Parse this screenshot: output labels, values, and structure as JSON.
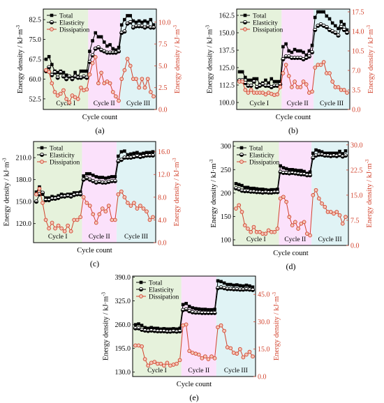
{
  "chart_data": [
    {
      "type": "line",
      "panel_label": "(a)",
      "xlabel": "Cycle count",
      "ylabel_left": "Energy density / kJ·m-3",
      "ylabel_right": "Energy density / kJ·m-3",
      "yticks_left": [
        "52.5",
        "60.0",
        "67.5",
        "75.0",
        "82.5"
      ],
      "ylim_left": [
        48.5,
        86.5
      ],
      "yticks_right": [
        "0.0",
        "2.5",
        "5.0",
        "7.5",
        "10.0"
      ],
      "ylim_right": [
        0,
        11.5
      ],
      "regions": [
        "Cycle I",
        "Cycle II",
        "Cycle III"
      ],
      "region_colors": [
        "#e6f2dc",
        "#fbe1fb",
        "#e0f3f5"
      ],
      "legend": [
        "Total",
        "Elasticity",
        "Dissipation"
      ],
      "series": [
        {
          "name": "Total",
          "axis": "left",
          "color": "#000000",
          "marker": "square",
          "values": [
            67.5,
            68.5,
            65.5,
            63.0,
            62.5,
            63.0,
            62.5,
            61.5,
            61.0,
            60.5,
            62.5,
            61.0,
            63.0,
            63.0,
            63.0,
            70.5,
            74.5,
            77.5,
            76.0,
            76.0,
            74.0,
            72.5,
            73.0,
            71.5,
            71.0,
            72.0,
            80.5,
            82.5,
            84.0,
            84.0,
            82.0,
            81.5,
            82.0,
            81.5,
            82.0,
            81.5,
            82.5,
            80.5
          ]
        },
        {
          "name": "Elasticity",
          "axis": "left",
          "color": "#000000",
          "marker": "halfcircle",
          "values": [
            63.0,
            64.5,
            61.5,
            62.5,
            60.5,
            62.5,
            61.0,
            60.0,
            61.0,
            60.0,
            61.0,
            60.5,
            60.5,
            61.0,
            60.5,
            66.5,
            69.0,
            71.5,
            72.0,
            71.0,
            70.5,
            70.0,
            70.0,
            70.0,
            70.0,
            70.5,
            77.5,
            78.0,
            81.0,
            81.5,
            79.5,
            80.0,
            80.0,
            80.0,
            79.5,
            80.0,
            79.5,
            79.5
          ]
        },
        {
          "name": "Dissipation",
          "axis": "right",
          "color": "#d2432d",
          "marker": "circle",
          "values": [
            4.5,
            4.3,
            3.0,
            2.0,
            1.6,
            1.8,
            2.2,
            1.2,
            0.8,
            1.6,
            1.4,
            1.2,
            2.5,
            2.2,
            2.3,
            4.0,
            5.3,
            6.0,
            3.0,
            4.2,
            3.0,
            3.2,
            3.0,
            2.0,
            1.5,
            1.0,
            3.5,
            4.5,
            5.8,
            5.0,
            3.5,
            3.5,
            2.5,
            3.5,
            2.5,
            3.5,
            2.0,
            1.5
          ]
        }
      ]
    },
    {
      "type": "line",
      "panel_label": "(b)",
      "xlabel": "Cycle count",
      "ylabel_left": "Energy density / kJ·m-3",
      "ylabel_right": "Energy density / kJ·m-3",
      "yticks_left": [
        "100.0",
        "112.5",
        "125.0",
        "137.5",
        "150.0",
        "162.5"
      ],
      "ylim_left": [
        95,
        167
      ],
      "yticks_right": [
        "0.0",
        "3.5",
        "7.0",
        "10.5",
        "14.0",
        "17.5"
      ],
      "ylim_right": [
        0,
        18
      ],
      "regions": [
        "Cycle I",
        "Cycle II",
        "Cycle III"
      ],
      "region_colors": [
        "#e6f2dc",
        "#fbe1fb",
        "#e0f3f5"
      ],
      "legend": [
        "Total",
        "Elasticity",
        "Dissipation"
      ],
      "series": [
        {
          "name": "Total",
          "axis": "left",
          "color": "#000000",
          "marker": "square",
          "values": [
            122,
            122,
            118,
            116,
            116,
            117,
            117,
            113,
            114,
            116,
            114,
            117,
            115,
            115,
            115,
            140,
            142,
            137,
            136,
            138,
            137,
            137,
            136,
            134,
            137,
            141,
            161,
            165,
            165,
            165,
            162,
            160,
            157,
            155,
            153,
            158,
            156,
            152
          ]
        },
        {
          "name": "Elasticity",
          "axis": "left",
          "color": "#000000",
          "marker": "halfcircle",
          "values": [
            116,
            116,
            114,
            112,
            112,
            115,
            111,
            112,
            113,
            112,
            112,
            111,
            112,
            112,
            113,
            131,
            133,
            133,
            132,
            132,
            132,
            132,
            131,
            132,
            133,
            136,
            152,
            155,
            156,
            155,
            154,
            152,
            151,
            150,
            148,
            154,
            152,
            150
          ]
        },
        {
          "name": "Dissipation",
          "axis": "right",
          "color": "#d2432d",
          "marker": "circle",
          "values": [
            5.0,
            5.0,
            3.5,
            3.0,
            3.5,
            3.0,
            3.0,
            3.0,
            3.0,
            2.7,
            3.0,
            2.8,
            2.6,
            2.7,
            4.0,
            6.5,
            8.0,
            6.0,
            4.0,
            5.0,
            4.0,
            4.0,
            5.0,
            4.5,
            3.0,
            3.2,
            7.5,
            8.0,
            8.0,
            8.5,
            6.5,
            6.5,
            5.0,
            4.0,
            4.0,
            3.5,
            3.5,
            3.0
          ]
        }
      ]
    },
    {
      "type": "line",
      "panel_label": "(c)",
      "xlabel": "Cycle count",
      "ylabel_left": "Energy density / kJ·m-3",
      "ylabel_right": "Energy density / kJ·m-3",
      "yticks_left": [
        "120.0",
        "150.0",
        "180.0",
        "210.0"
      ],
      "ylim_left": [
        94,
        232
      ],
      "yticks_right": [
        "0.0",
        "4.0",
        "8.0",
        "12.0",
        "16.0"
      ],
      "ylim_right": [
        0,
        17.8
      ],
      "regions": [
        "Cycle I",
        "Cycle II",
        "Cycle III"
      ],
      "region_colors": [
        "#e6f2dc",
        "#fbe1fb",
        "#e0f3f5"
      ],
      "legend": [
        "Total",
        "Elasticity",
        "Dissipation"
      ],
      "series": [
        {
          "name": "Total",
          "axis": "left",
          "color": "#000000",
          "marker": "square",
          "values": [
            163,
            170,
            160,
            155,
            155,
            157,
            156,
            158,
            160,
            159,
            160,
            160,
            162,
            162,
            163,
            185,
            188,
            188,
            186,
            184,
            183,
            183,
            182,
            183,
            184,
            184,
            212,
            218,
            219,
            214,
            215,
            216,
            217,
            215,
            216,
            217,
            217,
            218
          ]
        },
        {
          "name": "Elasticity",
          "axis": "left",
          "color": "#000000",
          "marker": "halfcircle",
          "values": [
            150,
            160,
            162,
            152,
            152,
            154,
            154,
            155,
            157,
            157,
            158,
            157,
            159,
            160,
            160,
            180,
            182,
            180,
            178,
            176,
            177,
            176,
            176,
            177,
            178,
            178,
            205,
            207,
            210,
            210,
            210,
            211,
            212,
            211,
            212,
            213,
            213,
            213
          ]
        },
        {
          "name": "Dissipation",
          "axis": "right",
          "color": "#d2432d",
          "marker": "circle",
          "values": [
            8.5,
            9.5,
            7.0,
            4.0,
            2.5,
            3.5,
            2.5,
            3.0,
            2.5,
            2.0,
            3.0,
            2.0,
            4.0,
            4.0,
            4.5,
            8.0,
            7.0,
            6.5,
            5.0,
            3.5,
            5.0,
            6.0,
            5.5,
            6.5,
            4.0,
            4.0,
            8.5,
            9.0,
            8.0,
            7.0,
            6.5,
            7.0,
            6.0,
            6.5,
            6.0,
            5.5,
            4.0,
            4.5
          ]
        }
      ]
    },
    {
      "type": "line",
      "panel_label": "(d)",
      "xlabel": "Cycle count",
      "ylabel_left": "Energy density / kJ·m-3",
      "ylabel_right": "Energy density / kJ·m-3",
      "yticks_left": [
        "100",
        "150",
        "200",
        "250",
        "300"
      ],
      "ylim_left": [
        88,
        310
      ],
      "yticks_right": [
        "0.0",
        "7.5",
        "15.0",
        "22.5",
        "30.0"
      ],
      "ylim_right": [
        0,
        31
      ],
      "regions": [
        "Cycle I",
        "Cycle II",
        "Cycle III"
      ],
      "region_colors": [
        "#e6f2dc",
        "#fbe1fb",
        "#e0f3f5"
      ],
      "legend": [
        "Total",
        "Elasticity",
        "Dissipation"
      ],
      "series": [
        {
          "name": "Total",
          "axis": "left",
          "color": "#000000",
          "marker": "square",
          "values": [
            220,
            218,
            216,
            212,
            212,
            210,
            210,
            209,
            208,
            208,
            207,
            206,
            207,
            207,
            208,
            258,
            254,
            252,
            250,
            250,
            249,
            248,
            248,
            246,
            242,
            245,
            285,
            292,
            290,
            288,
            285,
            285,
            285,
            285,
            285,
            289,
            284,
            290
          ]
        },
        {
          "name": "Elasticity",
          "axis": "left",
          "color": "#000000",
          "marker": "halfcircle",
          "values": [
            210,
            208,
            205,
            204,
            204,
            203,
            203,
            202,
            202,
            201,
            202,
            201,
            201,
            202,
            202,
            245,
            243,
            243,
            242,
            243,
            242,
            241,
            240,
            240,
            238,
            238,
            275,
            280,
            282,
            282,
            280,
            280,
            279,
            280,
            279,
            281,
            278,
            280
          ]
        },
        {
          "name": "Dissipation",
          "axis": "right",
          "color": "#d2432d",
          "marker": "circle",
          "values": [
            11.0,
            12.0,
            10.0,
            6.0,
            5.0,
            4.0,
            5.5,
            4.0,
            4.0,
            3.5,
            3.5,
            4.5,
            4.0,
            4.0,
            5.0,
            14.0,
            14.5,
            13.0,
            8.5,
            6.0,
            7.0,
            5.0,
            6.5,
            7.0,
            3.5,
            3.0,
            15.0,
            16.5,
            14.0,
            12.5,
            11.5,
            10.0,
            10.0,
            9.5,
            10.0,
            9.0,
            6.5,
            8.5
          ]
        }
      ]
    },
    {
      "type": "line",
      "panel_label": "(e)",
      "xlabel": "Cycle count",
      "ylabel_left": "Energy density / kJ·m-3",
      "ylabel_right": "Energy density / kJ·m-3",
      "yticks_left": [
        "130.0",
        "195.0",
        "260.0",
        "325.0",
        "390.0"
      ],
      "ylim_left": [
        118,
        393
      ],
      "yticks_right": [
        "0.0",
        "15.0",
        "30.0",
        "45.0"
      ],
      "ylim_right": [
        0,
        55
      ],
      "regions": [
        "Cycle I",
        "Cycle II",
        "Cycle III"
      ],
      "region_colors": [
        "#e6f2dc",
        "#fbe1fb",
        "#e0f3f5"
      ],
      "legend": [
        "Total",
        "Elasticity",
        "Dissipation"
      ],
      "series": [
        {
          "name": "Total",
          "axis": "left",
          "color": "#000000",
          "marker": "square",
          "values": [
            260,
            262,
            258,
            252,
            250,
            252,
            250,
            250,
            248,
            249,
            248,
            248,
            249,
            248,
            250,
            315,
            318,
            310,
            306,
            304,
            303,
            302,
            302,
            301,
            301,
            302,
            380,
            378,
            374,
            370,
            370,
            368,
            369,
            367,
            366,
            368,
            366,
            363
          ]
        },
        {
          "name": "Elasticity",
          "axis": "left",
          "color": "#000000",
          "marker": "halfcircle",
          "values": [
            250,
            250,
            246,
            244,
            243,
            244,
            243,
            242,
            242,
            242,
            241,
            241,
            242,
            241,
            242,
            300,
            302,
            297,
            294,
            293,
            293,
            292,
            292,
            292,
            292,
            292,
            360,
            362,
            360,
            358,
            358,
            357,
            357,
            356,
            356,
            357,
            356,
            355
          ]
        },
        {
          "name": "Dissipation",
          "axis": "right",
          "color": "#d2432d",
          "marker": "circle",
          "values": [
            17.0,
            17.0,
            16.5,
            9.5,
            6.0,
            7.5,
            8.0,
            7.0,
            7.0,
            6.0,
            7.5,
            6.0,
            6.5,
            7.0,
            9.0,
            28.0,
            28.5,
            14.0,
            13.0,
            12.5,
            12.0,
            10.0,
            11.0,
            9.5,
            11.0,
            10.0,
            27.0,
            28.0,
            25.0,
            16.0,
            15.5,
            13.0,
            12.5,
            15.0,
            10.5,
            12.0,
            13.5,
            11.0
          ]
        }
      ]
    }
  ]
}
